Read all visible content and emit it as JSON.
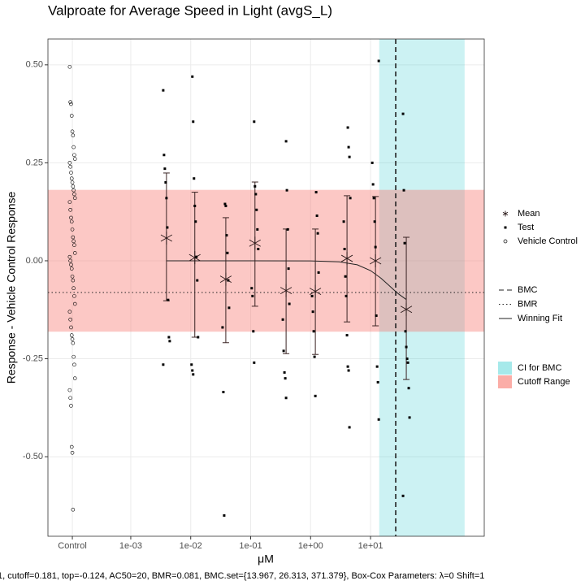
{
  "chart_data": {
    "type": "scatter",
    "title": "Valproate for Average Speed in Light (avgS_L)",
    "x_label": "μM",
    "y_label": "Response - Vehicle Control Response",
    "footnote": "1, cutoff=0.181, top=-0.124, AC50=20, BMR=0.081, BMC.set={13.967, 26.313, 371.379}, Box-Cox Parameters: λ=0 Shift=1",
    "x_scale": "log",
    "xlim": [
      4.15e-05,
      789
    ],
    "ylim": [
      -0.703,
      0.566
    ],
    "xticks": [
      {
        "value": 0.000106,
        "label": "Control"
      },
      {
        "value": 0.001,
        "label": "1e-03"
      },
      {
        "value": 0.01,
        "label": "1e-02"
      },
      {
        "value": 0.1,
        "label": "1e-01"
      },
      {
        "value": 1,
        "label": "1e+00"
      },
      {
        "value": 10,
        "label": "1e+01"
      }
    ],
    "yticks": [
      {
        "value": 0.5,
        "label": "0.50"
      },
      0.25,
      {
        "value": 0,
        "label": "0.00"
      },
      -0.25,
      {
        "value": -0.5,
        "label": "-0.50"
      }
    ],
    "grid": true,
    "series": [
      {
        "name": "Mean",
        "marker": "asterisk",
        "x": [
          0.00394,
          0.0117,
          0.0385,
          0.118,
          0.39,
          1.2,
          4.05,
          12.1,
          39.5
        ],
        "values": [
          0.058,
          0.008,
          -0.047,
          0.045,
          -0.076,
          -0.078,
          0.006,
          0.0,
          -0.124
        ],
        "lower": [
          -0.102,
          -0.195,
          -0.209,
          -0.116,
          -0.237,
          -0.239,
          -0.156,
          -0.166,
          -0.303
        ],
        "upper": [
          0.224,
          0.175,
          0.11,
          0.201,
          0.081,
          0.081,
          0.166,
          0.164,
          0.06
        ]
      },
      {
        "name": "Test",
        "marker": "dot",
        "x": [
          0.00394,
          0.00394,
          0.00394,
          0.00394,
          0.00394,
          0.00394,
          0.00394,
          0.00394,
          0.00394,
          0.00394,
          0.0117,
          0.0117,
          0.0117,
          0.0117,
          0.0117,
          0.0117,
          0.0117,
          0.0117,
          0.0117,
          0.0117,
          0.0117,
          0.0385,
          0.0385,
          0.0385,
          0.0385,
          0.0385,
          0.0385,
          0.0385,
          0.0385,
          0.0385,
          0.118,
          0.118,
          0.118,
          0.118,
          0.118,
          0.118,
          0.118,
          0.118,
          0.118,
          0.118,
          0.39,
          0.39,
          0.39,
          0.39,
          0.39,
          0.39,
          0.39,
          0.39,
          0.39,
          0.39,
          1.2,
          1.2,
          1.2,
          1.2,
          1.2,
          1.2,
          1.2,
          1.2,
          1.2,
          4.05,
          4.05,
          4.05,
          4.05,
          4.05,
          4.05,
          4.05,
          4.05,
          4.05,
          4.05,
          4.05,
          4.05,
          12.1,
          12.1,
          12.1,
          12.1,
          12.1,
          12.1,
          12.1,
          12.1,
          12.1,
          12.1,
          39.5,
          39.5,
          39.5,
          39.5,
          39.5,
          39.5,
          39.5,
          39.5,
          39.5,
          39.5
        ],
        "values": [
          0.435,
          0.27,
          0.235,
          0.2,
          0.16,
          0.085,
          -0.1,
          -0.195,
          -0.205,
          -0.265,
          0.47,
          0.355,
          0.21,
          0.14,
          0.1,
          0.01,
          -0.05,
          -0.195,
          -0.265,
          -0.28,
          -0.29,
          0.145,
          0.14,
          0.065,
          0.02,
          -0.05,
          -0.12,
          -0.17,
          -0.335,
          -0.65,
          0.355,
          0.19,
          0.17,
          0.13,
          0.08,
          0.03,
          -0.07,
          -0.09,
          -0.18,
          -0.26,
          0.305,
          0.18,
          0.08,
          -0.02,
          -0.11,
          -0.15,
          -0.23,
          -0.285,
          -0.3,
          -0.35,
          0.175,
          0.115,
          0.07,
          -0.03,
          -0.09,
          -0.13,
          -0.18,
          -0.245,
          -0.345,
          0.34,
          0.29,
          0.265,
          0.16,
          0.1,
          0.03,
          -0.04,
          -0.09,
          -0.19,
          -0.27,
          -0.28,
          -0.425,
          0.51,
          0.25,
          0.195,
          0.16,
          0.1,
          0.035,
          -0.14,
          -0.27,
          -0.31,
          -0.405,
          0.375,
          0.18,
          0.045,
          -0.18,
          -0.22,
          -0.25,
          -0.26,
          -0.325,
          -0.4,
          -0.6
        ]
      },
      {
        "name": "Vehicle Control",
        "marker": "open-circle",
        "values": [
          0.495,
          0.405,
          0.4,
          0.37,
          0.33,
          0.32,
          0.29,
          0.27,
          0.26,
          0.25,
          0.24,
          0.225,
          0.21,
          0.2,
          0.19,
          0.18,
          0.17,
          0.16,
          0.15,
          0.13,
          0.11,
          0.1,
          0.08,
          0.06,
          0.05,
          0.04,
          0.02,
          0.01,
          0.0,
          -0.01,
          -0.02,
          -0.04,
          -0.05,
          -0.07,
          -0.09,
          -0.11,
          -0.13,
          -0.15,
          -0.17,
          -0.19,
          -0.2,
          -0.21,
          -0.245,
          -0.265,
          -0.3,
          -0.33,
          -0.35,
          -0.37,
          -0.475,
          -0.49,
          -0.635
        ]
      }
    ],
    "lines": [
      {
        "name": "BMC",
        "style": "dashed",
        "axis": "x",
        "value": 26.313
      },
      {
        "name": "BMR",
        "style": "dotted",
        "axis": "y",
        "value": -0.081
      },
      {
        "name": "Winning Fit",
        "style": "solid",
        "x": [
          0.00394,
          0.1,
          1,
          3,
          6,
          10,
          15,
          20,
          25,
          30,
          39.5
        ],
        "values": [
          0,
          0,
          -0.0003,
          -0.0027,
          -0.0102,
          -0.025,
          -0.0446,
          -0.062,
          -0.0756,
          -0.0858,
          -0.099
        ]
      }
    ],
    "bands": [
      {
        "name": "CI for BMC",
        "axis": "x",
        "range": [
          13.967,
          371.379
        ],
        "color": "#00BFC4"
      },
      {
        "name": "Cutoff Range",
        "axis": "y",
        "range": [
          -0.181,
          0.181
        ],
        "color": "#F8766D"
      }
    ]
  }
}
